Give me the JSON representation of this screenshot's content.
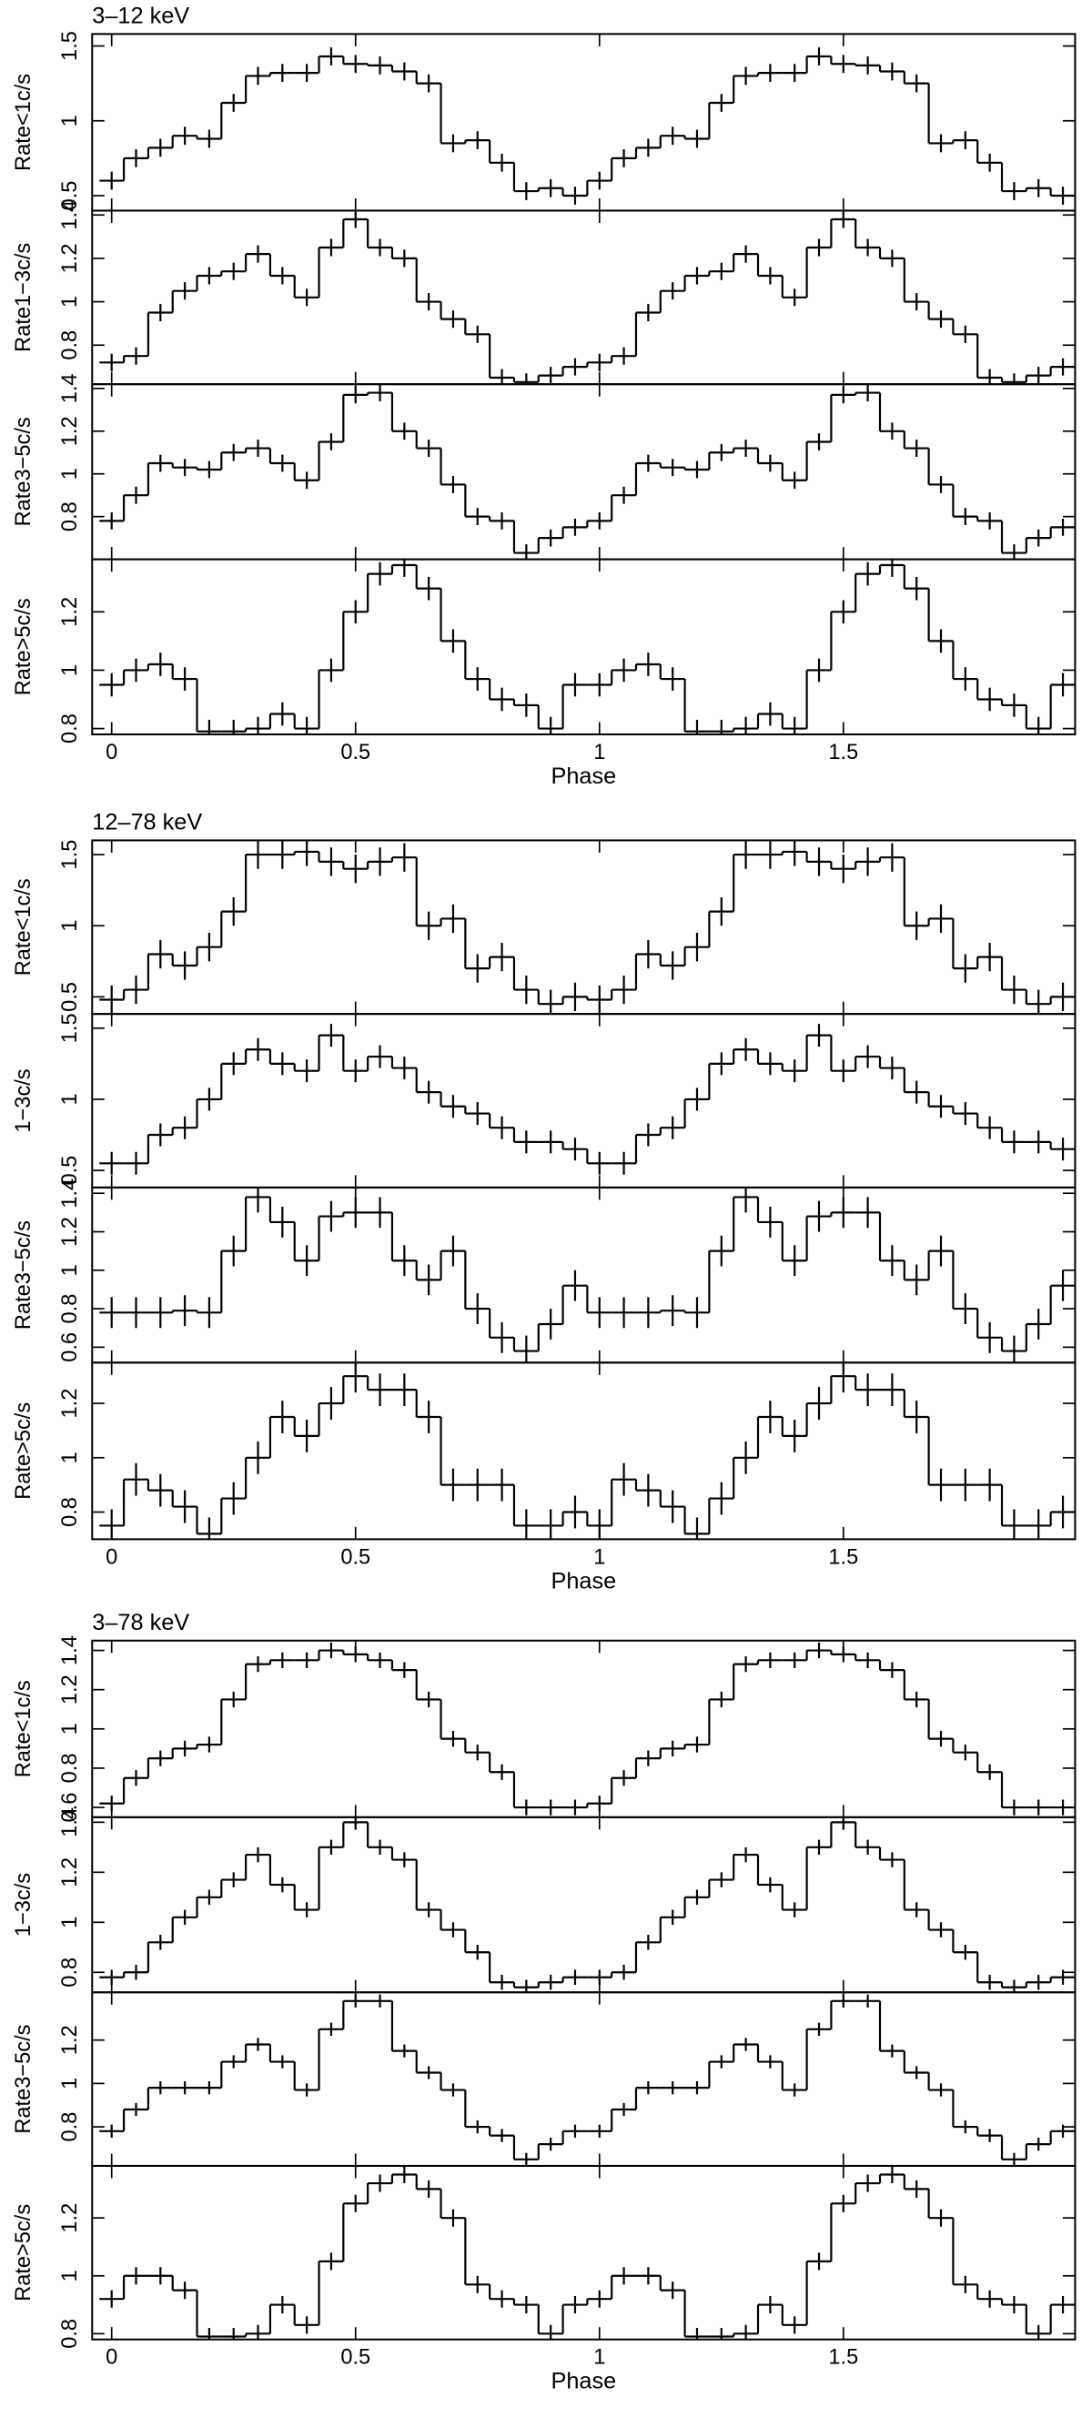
{
  "chart_data": [
    {
      "type": "step",
      "title": "3–12 keV",
      "xlabel": "Phase",
      "xlim": [
        -0.04,
        1.975
      ],
      "xticks": [
        0,
        0.5,
        1,
        1.5
      ],
      "x": [
        0,
        0.05,
        0.1,
        0.15,
        0.2,
        0.25,
        0.3,
        0.35,
        0.4,
        0.45,
        0.5,
        0.55,
        0.6,
        0.65,
        0.7,
        0.75,
        0.8,
        0.85,
        0.9,
        0.95,
        1,
        1.05,
        1.1,
        1.15,
        1.2,
        1.25,
        1.3,
        1.35,
        1.4,
        1.45,
        1.5,
        1.55,
        1.6,
        1.65,
        1.7,
        1.75,
        1.8,
        1.85,
        1.9,
        1.95
      ],
      "panels": [
        {
          "ylabel": "Rate<1c/s",
          "ylim": [
            0.4,
            1.58
          ],
          "yticks": [
            0.5,
            1,
            1.5
          ],
          "error": 0.06,
          "values": [
            0.6,
            0.75,
            0.82,
            0.9,
            0.88,
            1.12,
            1.3,
            1.32,
            1.32,
            1.43,
            1.38,
            1.37,
            1.33,
            1.25,
            0.85,
            0.87,
            0.72,
            0.53,
            0.55,
            0.5,
            0.6,
            0.75,
            0.82,
            0.9,
            0.88,
            1.12,
            1.3,
            1.32,
            1.32,
            1.43,
            1.38,
            1.37,
            1.33,
            1.25,
            0.85,
            0.87,
            0.72,
            0.53,
            0.55,
            0.5
          ]
        },
        {
          "ylabel": "Rate1−3c/s",
          "ylim": [
            0.62,
            1.42
          ],
          "yticks": [
            0.8,
            1,
            1.2,
            1.4
          ],
          "error": 0.04,
          "values": [
            0.72,
            0.75,
            0.95,
            1.05,
            1.12,
            1.14,
            1.22,
            1.12,
            1.02,
            1.25,
            1.38,
            1.25,
            1.2,
            1.0,
            0.92,
            0.85,
            0.65,
            0.63,
            0.66,
            0.7,
            0.72,
            0.75,
            0.95,
            1.05,
            1.12,
            1.14,
            1.22,
            1.12,
            1.02,
            1.25,
            1.38,
            1.25,
            1.2,
            1.0,
            0.92,
            0.85,
            0.65,
            0.63,
            0.66,
            0.7
          ]
        },
        {
          "ylabel": "Rate3−5c/s",
          "ylim": [
            0.6,
            1.42
          ],
          "yticks": [
            0.8,
            1,
            1.2,
            1.4
          ],
          "error": 0.04,
          "values": [
            0.78,
            0.9,
            1.05,
            1.03,
            1.02,
            1.1,
            1.12,
            1.05,
            0.97,
            1.15,
            1.37,
            1.38,
            1.2,
            1.12,
            0.95,
            0.8,
            0.78,
            0.63,
            0.7,
            0.75,
            0.78,
            0.9,
            1.05,
            1.03,
            1.02,
            1.1,
            1.12,
            1.05,
            0.97,
            1.15,
            1.37,
            1.38,
            1.2,
            1.12,
            0.95,
            0.8,
            0.78,
            0.63,
            0.7,
            0.75
          ]
        },
        {
          "ylabel": "Rate>5c/s",
          "ylim": [
            0.78,
            1.38
          ],
          "yticks": [
            0.8,
            1,
            1.2
          ],
          "error": 0.04,
          "values": [
            0.95,
            1.0,
            1.02,
            0.97,
            0.79,
            0.79,
            0.8,
            0.85,
            0.8,
            1.0,
            1.2,
            1.33,
            1.36,
            1.28,
            1.1,
            0.97,
            0.9,
            0.88,
            0.8,
            0.95,
            0.95,
            1.0,
            1.02,
            0.97,
            0.79,
            0.79,
            0.8,
            0.85,
            0.8,
            1.0,
            1.2,
            1.33,
            1.36,
            1.28,
            1.1,
            0.97,
            0.9,
            0.88,
            0.8,
            0.95
          ]
        }
      ]
    },
    {
      "type": "step",
      "title": "12–78 keV",
      "xlabel": "Phase",
      "xlim": [
        -0.04,
        1.975
      ],
      "xticks": [
        0,
        0.5,
        1,
        1.5
      ],
      "x": [
        0,
        0.05,
        0.1,
        0.15,
        0.2,
        0.25,
        0.3,
        0.35,
        0.4,
        0.45,
        0.5,
        0.55,
        0.6,
        0.65,
        0.7,
        0.75,
        0.8,
        0.85,
        0.9,
        0.95,
        1,
        1.05,
        1.1,
        1.15,
        1.2,
        1.25,
        1.3,
        1.35,
        1.4,
        1.45,
        1.5,
        1.55,
        1.6,
        1.65,
        1.7,
        1.75,
        1.8,
        1.85,
        1.9,
        1.95
      ],
      "panels": [
        {
          "ylabel": "Rate<1c/s",
          "ylim": [
            0.38,
            1.6
          ],
          "yticks": [
            0.5,
            1,
            1.5
          ],
          "error": 0.1,
          "values": [
            0.48,
            0.55,
            0.8,
            0.72,
            0.85,
            1.1,
            1.5,
            1.5,
            1.52,
            1.45,
            1.4,
            1.45,
            1.48,
            1.0,
            1.05,
            0.7,
            0.78,
            0.55,
            0.45,
            0.5,
            0.48,
            0.55,
            0.8,
            0.72,
            0.85,
            1.1,
            1.5,
            1.5,
            1.52,
            1.45,
            1.4,
            1.45,
            1.48,
            1.0,
            1.05,
            0.7,
            0.78,
            0.55,
            0.45,
            0.5
          ]
        },
        {
          "ylabel": "1−3c/s",
          "ylim": [
            0.38,
            1.6
          ],
          "yticks": [
            0.5,
            1,
            1.5
          ],
          "error": 0.08,
          "values": [
            0.55,
            0.55,
            0.75,
            0.8,
            1.0,
            1.25,
            1.35,
            1.25,
            1.2,
            1.45,
            1.2,
            1.3,
            1.22,
            1.05,
            0.95,
            0.9,
            0.8,
            0.7,
            0.7,
            0.65,
            0.55,
            0.55,
            0.75,
            0.8,
            1.0,
            1.25,
            1.35,
            1.25,
            1.2,
            1.45,
            1.2,
            1.3,
            1.22,
            1.05,
            0.95,
            0.9,
            0.8,
            0.7,
            0.7,
            0.65
          ]
        },
        {
          "ylabel": "Rate3−5c/s",
          "ylim": [
            0.52,
            1.43
          ],
          "yticks": [
            0.6,
            0.8,
            1,
            1.2,
            1.4
          ],
          "error": 0.08,
          "values": [
            0.78,
            0.78,
            0.78,
            0.79,
            0.78,
            1.1,
            1.38,
            1.25,
            1.05,
            1.28,
            1.3,
            1.3,
            1.05,
            0.95,
            1.1,
            0.8,
            0.65,
            0.58,
            0.72,
            0.92,
            0.78,
            0.78,
            0.78,
            0.79,
            0.78,
            1.1,
            1.38,
            1.25,
            1.05,
            1.28,
            1.3,
            1.3,
            1.05,
            0.95,
            1.1,
            0.8,
            0.65,
            0.58,
            0.72,
            0.92
          ]
        },
        {
          "ylabel": "Rate>5c/s",
          "ylim": [
            0.7,
            1.35
          ],
          "yticks": [
            0.8,
            1,
            1.2
          ],
          "error": 0.06,
          "values": [
            0.75,
            0.92,
            0.88,
            0.82,
            0.72,
            0.85,
            1.0,
            1.15,
            1.08,
            1.2,
            1.3,
            1.25,
            1.25,
            1.15,
            0.9,
            0.9,
            0.9,
            0.75,
            0.75,
            0.8,
            0.75,
            0.92,
            0.88,
            0.82,
            0.72,
            0.85,
            1.0,
            1.15,
            1.08,
            1.2,
            1.3,
            1.25,
            1.25,
            1.15,
            0.9,
            0.9,
            0.9,
            0.75,
            0.75,
            0.8
          ]
        }
      ]
    },
    {
      "type": "step",
      "title": "3–78 keV",
      "xlabel": "Phase",
      "xlim": [
        -0.04,
        1.975
      ],
      "xticks": [
        0,
        0.5,
        1,
        1.5
      ],
      "x": [
        0,
        0.05,
        0.1,
        0.15,
        0.2,
        0.25,
        0.3,
        0.35,
        0.4,
        0.45,
        0.5,
        0.55,
        0.6,
        0.65,
        0.7,
        0.75,
        0.8,
        0.85,
        0.9,
        0.95,
        1,
        1.05,
        1.1,
        1.15,
        1.2,
        1.25,
        1.3,
        1.35,
        1.4,
        1.45,
        1.5,
        1.55,
        1.6,
        1.65,
        1.7,
        1.75,
        1.8,
        1.85,
        1.9,
        1.95
      ],
      "panels": [
        {
          "ylabel": "Rate<1c/s",
          "ylim": [
            0.55,
            1.45
          ],
          "yticks": [
            0.6,
            0.8,
            1,
            1.2,
            1.4
          ],
          "error": 0.04,
          "values": [
            0.62,
            0.75,
            0.85,
            0.9,
            0.92,
            1.15,
            1.33,
            1.35,
            1.35,
            1.4,
            1.38,
            1.35,
            1.3,
            1.15,
            0.95,
            0.88,
            0.78,
            0.6,
            0.6,
            0.6,
            0.62,
            0.75,
            0.85,
            0.9,
            0.92,
            1.15,
            1.33,
            1.35,
            1.35,
            1.4,
            1.38,
            1.35,
            1.3,
            1.15,
            0.95,
            0.88,
            0.78,
            0.6,
            0.6,
            0.6
          ]
        },
        {
          "ylabel": "1−3c/s",
          "ylim": [
            0.72,
            1.42
          ],
          "yticks": [
            0.8,
            1,
            1.2,
            1.4
          ],
          "error": 0.03,
          "values": [
            0.78,
            0.8,
            0.92,
            1.02,
            1.1,
            1.17,
            1.27,
            1.15,
            1.05,
            1.3,
            1.4,
            1.3,
            1.25,
            1.05,
            0.97,
            0.88,
            0.76,
            0.74,
            0.76,
            0.78,
            0.78,
            0.8,
            0.92,
            1.02,
            1.1,
            1.17,
            1.27,
            1.15,
            1.05,
            1.3,
            1.4,
            1.3,
            1.25,
            1.05,
            0.97,
            0.88,
            0.76,
            0.74,
            0.76,
            0.78
          ]
        },
        {
          "ylabel": "Rate3−5c/s",
          "ylim": [
            0.62,
            1.42
          ],
          "yticks": [
            0.8,
            1,
            1.2
          ],
          "error": 0.03,
          "values": [
            0.78,
            0.88,
            0.98,
            0.98,
            0.98,
            1.1,
            1.18,
            1.1,
            0.97,
            1.25,
            1.38,
            1.38,
            1.15,
            1.05,
            0.97,
            0.8,
            0.76,
            0.65,
            0.72,
            0.78,
            0.78,
            0.88,
            0.98,
            0.98,
            0.98,
            1.1,
            1.18,
            1.1,
            0.97,
            1.25,
            1.38,
            1.38,
            1.15,
            1.05,
            0.97,
            0.8,
            0.76,
            0.65,
            0.72,
            0.78
          ]
        },
        {
          "ylabel": "Rate>5c/s",
          "ylim": [
            0.78,
            1.38
          ],
          "yticks": [
            0.8,
            1,
            1.2
          ],
          "error": 0.03,
          "values": [
            0.92,
            1.0,
            1.0,
            0.95,
            0.79,
            0.79,
            0.8,
            0.9,
            0.83,
            1.05,
            1.25,
            1.32,
            1.35,
            1.3,
            1.2,
            0.97,
            0.92,
            0.9,
            0.8,
            0.9,
            0.92,
            1.0,
            1.0,
            0.95,
            0.79,
            0.79,
            0.8,
            0.9,
            0.83,
            1.05,
            1.25,
            1.32,
            1.35,
            1.3,
            1.2,
            0.97,
            0.92,
            0.9,
            0.8,
            0.9
          ]
        }
      ]
    }
  ]
}
